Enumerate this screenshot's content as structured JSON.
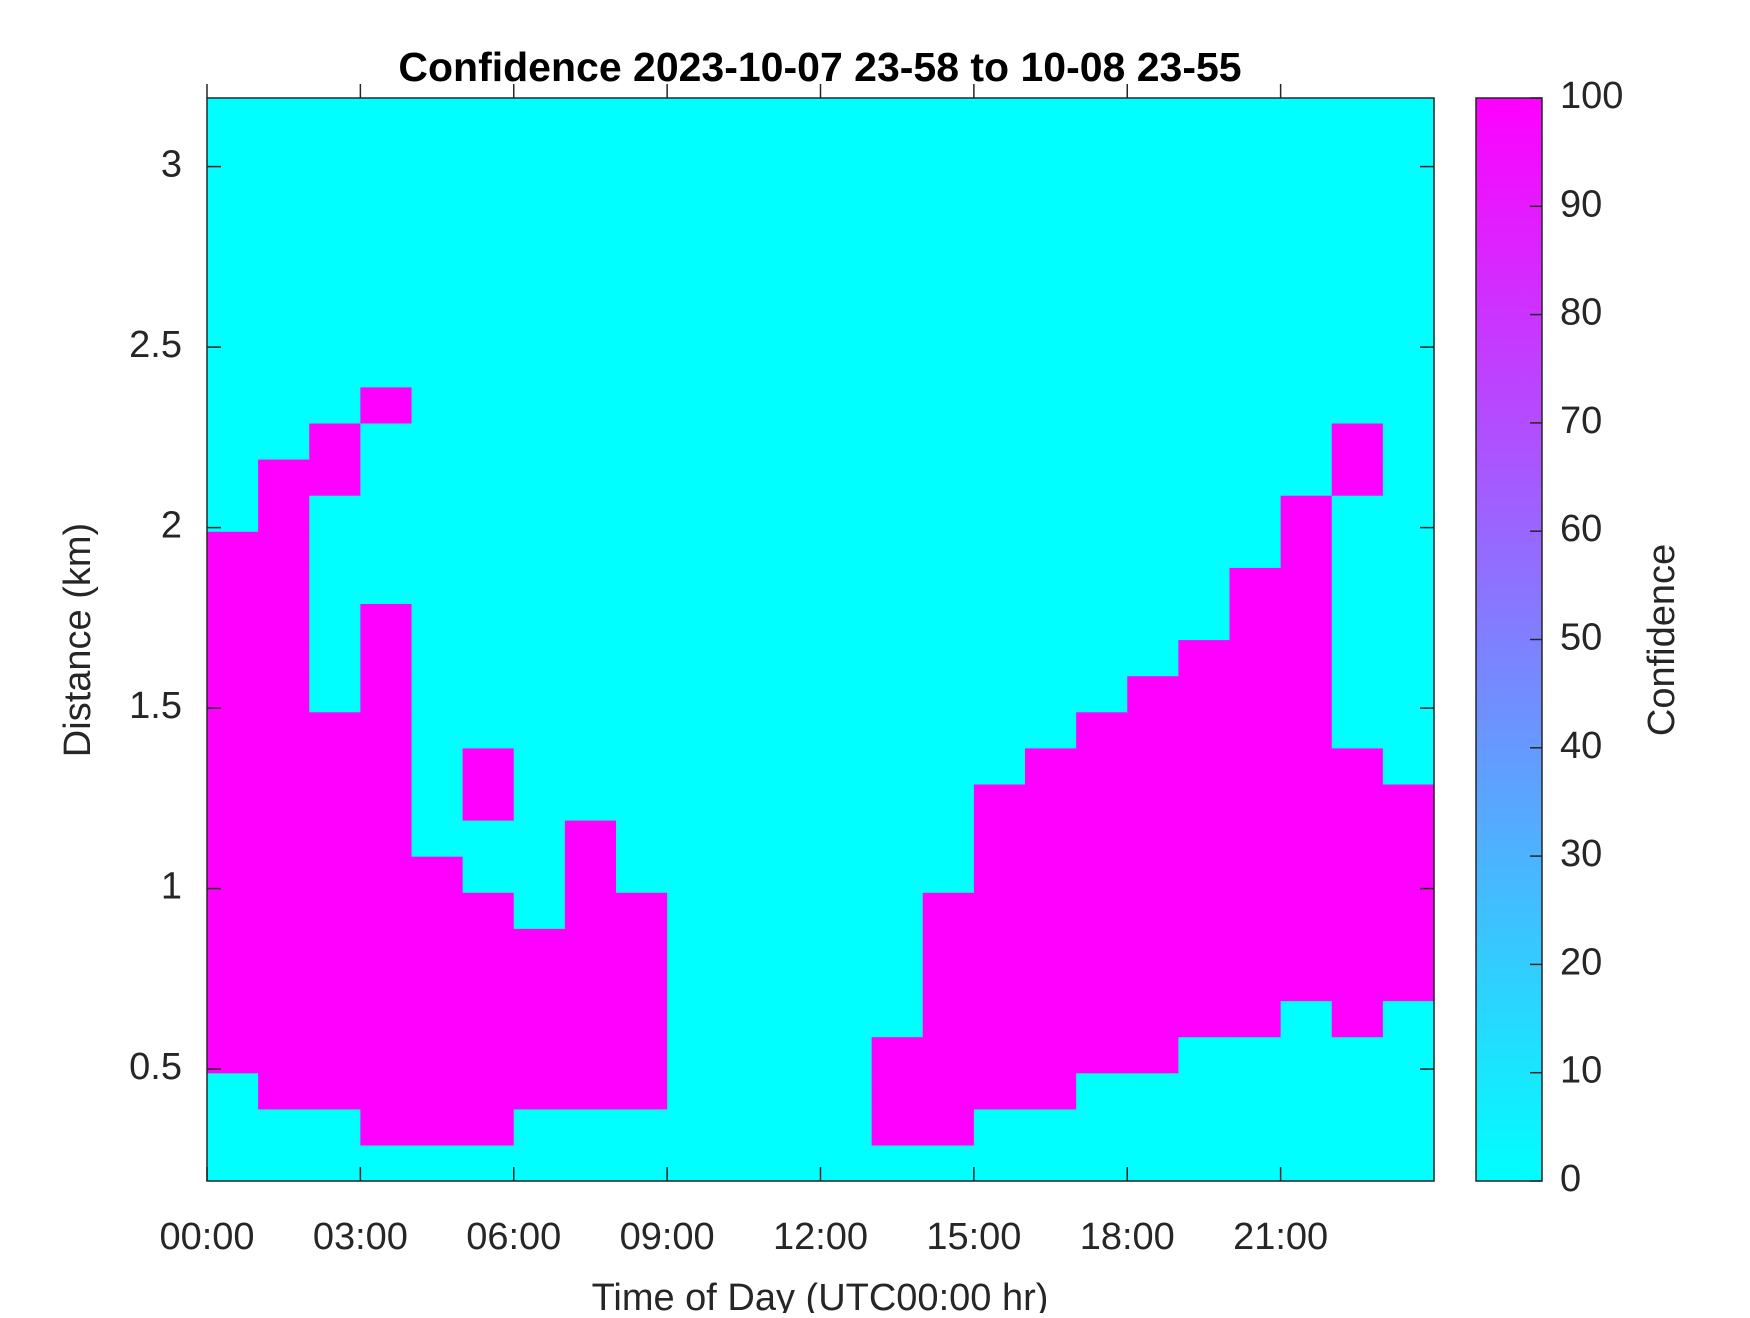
{
  "chart_data": {
    "type": "heatmap",
    "title": "Confidence 2023-10-07 23-58 to 10-08 23-55",
    "xlabel": "Time of Day (UTC00:00 hr)",
    "ylabel": "Distance (km)",
    "x_edges": [
      0,
      1,
      2,
      3,
      4,
      5,
      6,
      7,
      8,
      9,
      10,
      11,
      12,
      13,
      14,
      15,
      16,
      17,
      18,
      19,
      20,
      21,
      22,
      23,
      24
    ],
    "y_edges": [
      0.19,
      0.29,
      0.39,
      0.49,
      0.59,
      0.69,
      0.79,
      0.89,
      0.99,
      1.09,
      1.19,
      1.29,
      1.39,
      1.49,
      1.59,
      1.69,
      1.79,
      1.89,
      1.99,
      2.09,
      2.19,
      2.29,
      2.39,
      2.49,
      2.59,
      2.69,
      2.79,
      2.89,
      2.99,
      3.09,
      3.19
    ],
    "z": [
      [
        0,
        0,
        0,
        0,
        0,
        0,
        0,
        0,
        0,
        0,
        0,
        0,
        0,
        0,
        0,
        0,
        0,
        0,
        0,
        0,
        0,
        0,
        0,
        0
      ],
      [
        0,
        0,
        0,
        100,
        100,
        100,
        0,
        0,
        0,
        0,
        0,
        0,
        0,
        100,
        100,
        0,
        0,
        0,
        0,
        0,
        0,
        0,
        0,
        0
      ],
      [
        0,
        100,
        100,
        100,
        100,
        100,
        100,
        100,
        100,
        0,
        0,
        0,
        0,
        100,
        100,
        100,
        100,
        0,
        0,
        0,
        0,
        0,
        0,
        0
      ],
      [
        100,
        100,
        100,
        100,
        100,
        100,
        100,
        100,
        100,
        0,
        0,
        0,
        0,
        100,
        100,
        100,
        100,
        100,
        100,
        0,
        0,
        0,
        0,
        0
      ],
      [
        100,
        100,
        100,
        100,
        100,
        100,
        100,
        100,
        100,
        0,
        0,
        0,
        0,
        0,
        100,
        100,
        100,
        100,
        100,
        100,
        100,
        0,
        100,
        0
      ],
      [
        100,
        100,
        100,
        100,
        100,
        100,
        100,
        100,
        100,
        0,
        0,
        0,
        0,
        0,
        100,
        100,
        100,
        100,
        100,
        100,
        100,
        100,
        100,
        100
      ],
      [
        100,
        100,
        100,
        100,
        100,
        100,
        100,
        100,
        100,
        0,
        0,
        0,
        0,
        0,
        100,
        100,
        100,
        100,
        100,
        100,
        100,
        100,
        100,
        100
      ],
      [
        100,
        100,
        100,
        100,
        100,
        100,
        0,
        100,
        100,
        0,
        0,
        0,
        0,
        0,
        100,
        100,
        100,
        100,
        100,
        100,
        100,
        100,
        100,
        100
      ],
      [
        100,
        100,
        100,
        100,
        100,
        0,
        0,
        100,
        0,
        0,
        0,
        0,
        0,
        0,
        0,
        100,
        100,
        100,
        100,
        100,
        100,
        100,
        100,
        100
      ],
      [
        100,
        100,
        100,
        100,
        0,
        0,
        0,
        100,
        0,
        0,
        0,
        0,
        0,
        0,
        0,
        100,
        100,
        100,
        100,
        100,
        100,
        100,
        100,
        100
      ],
      [
        100,
        100,
        100,
        100,
        0,
        100,
        0,
        0,
        0,
        0,
        0,
        0,
        0,
        0,
        0,
        100,
        100,
        100,
        100,
        100,
        100,
        100,
        100,
        100
      ],
      [
        100,
        100,
        100,
        100,
        0,
        100,
        0,
        0,
        0,
        0,
        0,
        0,
        0,
        0,
        0,
        0,
        100,
        100,
        100,
        100,
        100,
        100,
        100,
        0
      ],
      [
        100,
        100,
        100,
        100,
        0,
        0,
        0,
        0,
        0,
        0,
        0,
        0,
        0,
        0,
        0,
        0,
        0,
        100,
        100,
        100,
        100,
        100,
        0,
        0
      ],
      [
        100,
        100,
        0,
        100,
        0,
        0,
        0,
        0,
        0,
        0,
        0,
        0,
        0,
        0,
        0,
        0,
        0,
        0,
        100,
        100,
        100,
        100,
        0,
        0
      ],
      [
        100,
        100,
        0,
        100,
        0,
        0,
        0,
        0,
        0,
        0,
        0,
        0,
        0,
        0,
        0,
        0,
        0,
        0,
        0,
        100,
        100,
        100,
        0,
        0
      ],
      [
        100,
        100,
        0,
        100,
        0,
        0,
        0,
        0,
        0,
        0,
        0,
        0,
        0,
        0,
        0,
        0,
        0,
        0,
        0,
        0,
        100,
        100,
        0,
        0
      ],
      [
        100,
        100,
        0,
        0,
        0,
        0,
        0,
        0,
        0,
        0,
        0,
        0,
        0,
        0,
        0,
        0,
        0,
        0,
        0,
        0,
        100,
        100,
        0,
        0
      ],
      [
        100,
        100,
        0,
        0,
        0,
        0,
        0,
        0,
        0,
        0,
        0,
        0,
        0,
        0,
        0,
        0,
        0,
        0,
        0,
        0,
        0,
        100,
        0,
        0
      ],
      [
        0,
        100,
        0,
        0,
        0,
        0,
        0,
        0,
        0,
        0,
        0,
        0,
        0,
        0,
        0,
        0,
        0,
        0,
        0,
        0,
        0,
        100,
        0,
        0
      ],
      [
        0,
        100,
        100,
        0,
        0,
        0,
        0,
        0,
        0,
        0,
        0,
        0,
        0,
        0,
        0,
        0,
        0,
        0,
        0,
        0,
        0,
        0,
        100,
        0
      ],
      [
        0,
        0,
        100,
        0,
        0,
        0,
        0,
        0,
        0,
        0,
        0,
        0,
        0,
        0,
        0,
        0,
        0,
        0,
        0,
        0,
        0,
        0,
        100,
        0
      ],
      [
        0,
        0,
        0,
        100,
        0,
        0,
        0,
        0,
        0,
        0,
        0,
        0,
        0,
        0,
        0,
        0,
        0,
        0,
        0,
        0,
        0,
        0,
        0,
        0
      ],
      [
        0,
        0,
        0,
        0,
        0,
        0,
        0,
        0,
        0,
        0,
        0,
        0,
        0,
        0,
        0,
        0,
        0,
        0,
        0,
        0,
        0,
        0,
        0,
        0
      ],
      [
        0,
        0,
        0,
        0,
        0,
        0,
        0,
        0,
        0,
        0,
        0,
        0,
        0,
        0,
        0,
        0,
        0,
        0,
        0,
        0,
        0,
        0,
        0,
        0
      ],
      [
        0,
        0,
        0,
        0,
        0,
        0,
        0,
        0,
        0,
        0,
        0,
        0,
        0,
        0,
        0,
        0,
        0,
        0,
        0,
        0,
        0,
        0,
        0,
        0
      ],
      [
        0,
        0,
        0,
        0,
        0,
        0,
        0,
        0,
        0,
        0,
        0,
        0,
        0,
        0,
        0,
        0,
        0,
        0,
        0,
        0,
        0,
        0,
        0,
        0
      ],
      [
        0,
        0,
        0,
        0,
        0,
        0,
        0,
        0,
        0,
        0,
        0,
        0,
        0,
        0,
        0,
        0,
        0,
        0,
        0,
        0,
        0,
        0,
        0,
        0
      ],
      [
        0,
        0,
        0,
        0,
        0,
        0,
        0,
        0,
        0,
        0,
        0,
        0,
        0,
        0,
        0,
        0,
        0,
        0,
        0,
        0,
        0,
        0,
        0,
        0
      ],
      [
        0,
        0,
        0,
        0,
        0,
        0,
        0,
        0,
        0,
        0,
        0,
        0,
        0,
        0,
        0,
        0,
        0,
        0,
        0,
        0,
        0,
        0,
        0,
        0
      ],
      [
        0,
        0,
        0,
        0,
        0,
        0,
        0,
        0,
        0,
        0,
        0,
        0,
        0,
        0,
        0,
        0,
        0,
        0,
        0,
        0,
        0,
        0,
        0,
        0
      ]
    ],
    "xlim": [
      0,
      24
    ],
    "xticks": [
      {
        "value": 0,
        "label": "00:00"
      },
      {
        "value": 3,
        "label": "03:00"
      },
      {
        "value": 6,
        "label": "06:00"
      },
      {
        "value": 9,
        "label": "09:00"
      },
      {
        "value": 12,
        "label": "12:00"
      },
      {
        "value": 15,
        "label": "15:00"
      },
      {
        "value": 18,
        "label": "18:00"
      },
      {
        "value": 21,
        "label": "21:00"
      }
    ],
    "ylim": [
      0.19,
      3.19
    ],
    "yticks": [
      0.5,
      1,
      1.5,
      2,
      2.5,
      3
    ],
    "colorbar": {
      "label": "Confidence",
      "clim": [
        0,
        100
      ],
      "ticks": [
        0,
        10,
        20,
        30,
        40,
        50,
        60,
        70,
        80,
        90,
        100
      ],
      "colors": [
        "#00ffff",
        "#ff00ff"
      ]
    }
  }
}
